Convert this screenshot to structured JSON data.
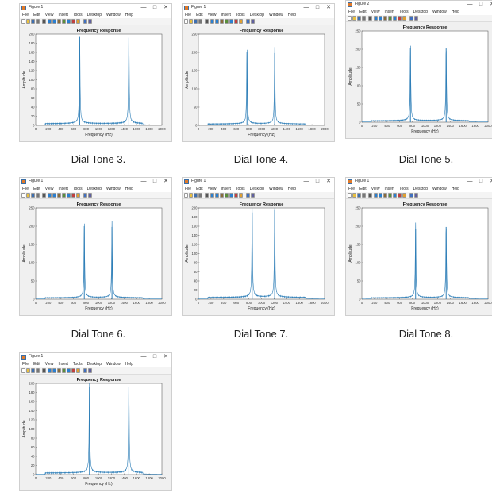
{
  "menu": [
    "File",
    "Edit",
    "View",
    "Insert",
    "Tools",
    "Desktop",
    "Window",
    "Help"
  ],
  "icons": [
    "new-file-icon",
    "open-folder-icon",
    "save-icon",
    "print-icon",
    "pointer-icon",
    "zoom-in-icon",
    "zoom-out-icon",
    "pan-icon",
    "rotate-icon",
    "data-cursor-icon",
    "brush-icon",
    "colorbar-icon",
    "legend-icon",
    "property-editor-icon"
  ],
  "colors": {
    "line": "#2f7fb8",
    "window": "#f0f0f0",
    "axes": "#ffffff"
  },
  "windows": [
    {
      "title": "Figure 1",
      "caption": "Dial Tone 3."
    },
    {
      "title": "Figure 1",
      "caption": "Dial Tone 4."
    },
    {
      "title": "Figure 2",
      "caption": "Dial Tone 5."
    },
    {
      "title": "Figure 1",
      "caption": "Dial Tone 6."
    },
    {
      "title": "Figure 1",
      "caption": "Dial Tone 7."
    },
    {
      "title": "Figure 1",
      "caption": "Dial Tone 8."
    },
    {
      "title": "Figure 1",
      "caption": ""
    }
  ],
  "chart_data": [
    {
      "type": "line",
      "title": "Frequency Response",
      "xlabel": "Frequency (Hz)",
      "ylabel": "Amplitude",
      "xlim": [
        0,
        2000
      ],
      "ylim": [
        0,
        200
      ],
      "xticks": [
        0,
        200,
        400,
        600,
        800,
        1000,
        1200,
        1400,
        1600,
        1800,
        2000
      ],
      "yticks": [
        0,
        20,
        40,
        60,
        80,
        100,
        120,
        140,
        160,
        180,
        200
      ],
      "peaks": [
        {
          "x": 697,
          "y": 195
        },
        {
          "x": 1477,
          "y": 192
        }
      ]
    },
    {
      "type": "line",
      "title": "Frequency Response",
      "xlabel": "Frequency (Hz)",
      "ylabel": "Amplitude",
      "xlim": [
        0,
        2000
      ],
      "ylim": [
        0,
        250
      ],
      "xticks": [
        0,
        200,
        400,
        600,
        800,
        1000,
        1200,
        1400,
        1600,
        1800,
        2000
      ],
      "yticks": [
        0,
        50,
        100,
        150,
        200,
        250
      ],
      "peaks": [
        {
          "x": 770,
          "y": 200
        },
        {
          "x": 1209,
          "y": 198
        }
      ]
    },
    {
      "type": "line",
      "title": "Frequency Response",
      "xlabel": "Frequency (Hz)",
      "ylabel": "Amplitude",
      "xlim": [
        0,
        2000
      ],
      "ylim": [
        0,
        250
      ],
      "xticks": [
        0,
        200,
        400,
        600,
        800,
        1000,
        1200,
        1400,
        1600,
        1800,
        2000
      ],
      "yticks": [
        0,
        50,
        100,
        150,
        200,
        250
      ],
      "peaks": [
        {
          "x": 770,
          "y": 203
        },
        {
          "x": 1336,
          "y": 202
        }
      ]
    },
    {
      "type": "line",
      "title": "Frequency Response",
      "xlabel": "Frequency (Hz)",
      "ylabel": "Amplitude",
      "xlim": [
        0,
        2000
      ],
      "ylim": [
        0,
        250
      ],
      "xticks": [
        0,
        200,
        400,
        600,
        800,
        1000,
        1200,
        1400,
        1600,
        1800,
        2000
      ],
      "yticks": [
        0,
        50,
        100,
        150,
        200,
        250
      ],
      "peaks": [
        {
          "x": 770,
          "y": 200
        },
        {
          "x": 1209,
          "y": 198
        }
      ]
    },
    {
      "type": "line",
      "title": "Frequency Response",
      "xlabel": "Frequency (Hz)",
      "ylabel": "Amplitude",
      "xlim": [
        0,
        2000
      ],
      "ylim": [
        0,
        200
      ],
      "xticks": [
        0,
        200,
        400,
        600,
        800,
        1000,
        1200,
        1400,
        1600,
        1800,
        2000
      ],
      "yticks": [
        0,
        20,
        40,
        60,
        80,
        100,
        120,
        140,
        160,
        180,
        200
      ],
      "peaks": [
        {
          "x": 852,
          "y": 190
        },
        {
          "x": 1209,
          "y": 197
        }
      ]
    },
    {
      "type": "line",
      "title": "Frequency Response",
      "xlabel": "Frequency (Hz)",
      "ylabel": "Amplitude",
      "xlim": [
        0,
        2000
      ],
      "ylim": [
        0,
        250
      ],
      "xticks": [
        0,
        200,
        400,
        600,
        800,
        1000,
        1200,
        1400,
        1600,
        1800,
        2000
      ],
      "yticks": [
        0,
        50,
        100,
        150,
        200,
        250
      ],
      "peaks": [
        {
          "x": 852,
          "y": 193
        },
        {
          "x": 1336,
          "y": 198
        }
      ]
    },
    {
      "type": "line",
      "title": "Frequency Response",
      "xlabel": "Frequency (Hz)",
      "ylabel": "Amplitude",
      "xlim": [
        0,
        2000
      ],
      "ylim": [
        0,
        200
      ],
      "xticks": [
        0,
        200,
        400,
        600,
        800,
        1000,
        1200,
        1400,
        1600,
        1800,
        2000
      ],
      "yticks": [
        0,
        20,
        40,
        60,
        80,
        100,
        120,
        140,
        160,
        180,
        200
      ],
      "peaks": [
        {
          "x": 852,
          "y": 192
        },
        {
          "x": 1477,
          "y": 192
        }
      ]
    }
  ]
}
